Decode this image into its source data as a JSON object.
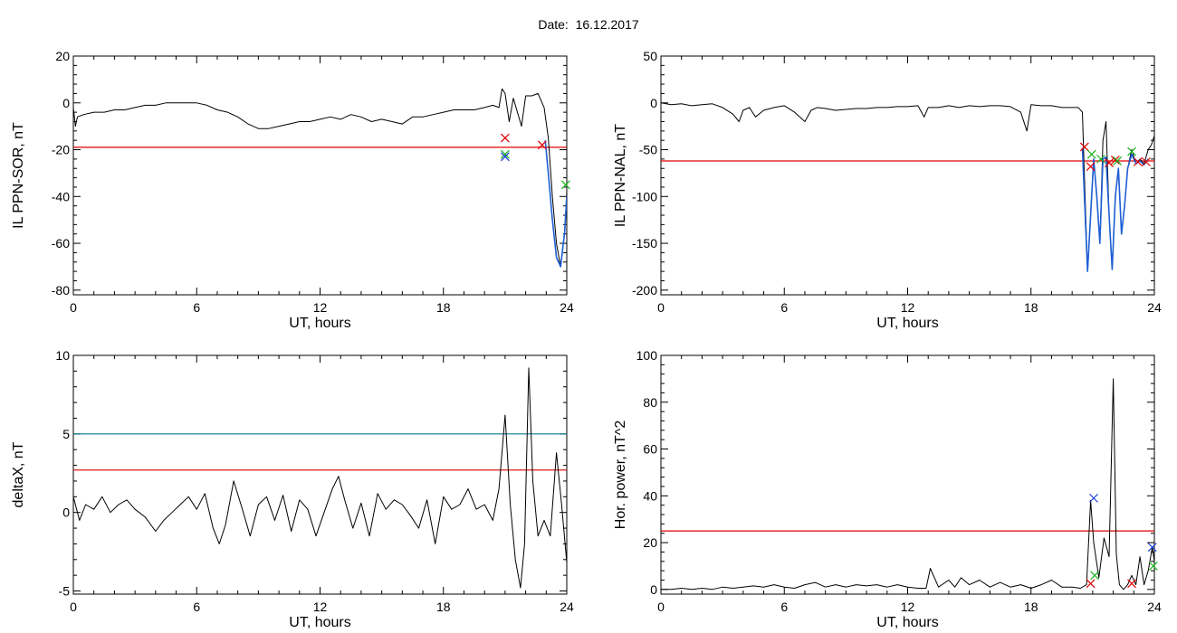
{
  "page": {
    "title_label": "Date:",
    "title_value": "16.12.2017"
  },
  "colors": {
    "trace": "#000000",
    "threshold": "#e00000",
    "upper_threshold": "#0a7a92",
    "fit": "#1f5fd6",
    "mark_red": "#e00000",
    "mark_green": "#16b01a",
    "mark_blue": "#1a3fd8"
  },
  "chart_data": [
    {
      "id": "ppn-sor",
      "type": "line",
      "xlabel": "UT, hours",
      "ylabel": "IL PPN-SOR, nT",
      "xlim": [
        0,
        24
      ],
      "ylim": [
        -82,
        20
      ],
      "xticks": [
        0,
        6,
        12,
        18,
        24
      ],
      "yticks": [
        20,
        0,
        -20,
        -40,
        -60,
        -80
      ],
      "series": [
        {
          "role": "trace",
          "x": [
            0,
            0.1,
            0.2,
            0.5,
            1,
            1.5,
            2,
            2.5,
            3,
            3.5,
            4,
            4.5,
            5,
            5.5,
            6,
            6.5,
            7,
            7.5,
            8,
            8.5,
            9,
            9.5,
            10,
            10.5,
            11,
            11.5,
            12,
            12.5,
            13,
            13.5,
            14,
            14.5,
            15,
            15.5,
            16,
            16.5,
            17,
            17.5,
            18,
            18.5,
            19,
            19.5,
            20,
            20.4,
            20.7,
            20.85,
            21,
            21.2,
            21.4,
            21.6,
            21.8,
            22,
            22.3,
            22.6,
            22.9,
            23.1,
            23.3,
            23.5,
            23.7,
            23.9,
            24
          ],
          "y": [
            -2,
            -10,
            -6,
            -5,
            -4,
            -4,
            -3,
            -3,
            -2,
            -1,
            -1,
            0,
            0,
            0,
            0,
            -1,
            -3,
            -4,
            -6,
            -9,
            -11,
            -11,
            -10,
            -9,
            -8,
            -8,
            -7,
            -6,
            -7,
            -5,
            -6,
            -8,
            -7,
            -8,
            -9,
            -6,
            -6,
            -5,
            -4,
            -3,
            -3,
            -3,
            -2,
            -1,
            -2,
            6,
            4,
            -8,
            2,
            -4,
            -10,
            3,
            3,
            4,
            -2,
            -15,
            -40,
            -60,
            -70,
            -55,
            -38
          ]
        },
        {
          "role": "fit",
          "x": [
            22.95,
            23.1,
            23.3,
            23.5,
            23.7,
            23.9,
            24
          ],
          "y": [
            -16,
            -30,
            -50,
            -66,
            -70,
            -55,
            -40
          ]
        },
        {
          "role": "threshold",
          "x": [
            0,
            24
          ],
          "y": [
            -19,
            -19
          ]
        }
      ],
      "markers": [
        {
          "x": 21.0,
          "y": -15,
          "color": "red"
        },
        {
          "x": 21.0,
          "y": -22,
          "color": "green"
        },
        {
          "x": 21.0,
          "y": -23,
          "color": "blue"
        },
        {
          "x": 22.8,
          "y": -18,
          "color": "red"
        },
        {
          "x": 23.95,
          "y": -35,
          "color": "green"
        }
      ]
    },
    {
      "id": "ppn-nal",
      "type": "line",
      "xlabel": "UT, hours",
      "ylabel": "IL PPN-NAL, nT",
      "xlim": [
        0,
        24
      ],
      "ylim": [
        -205,
        50
      ],
      "xticks": [
        0,
        6,
        12,
        18,
        24
      ],
      "yticks": [
        50,
        0,
        -50,
        -100,
        -150,
        -200
      ],
      "series": [
        {
          "role": "trace",
          "x": [
            0,
            0.5,
            1,
            1.5,
            2,
            2.5,
            3,
            3.5,
            3.8,
            4,
            4.3,
            4.6,
            5,
            5.5,
            6,
            6.5,
            7,
            7.3,
            7.6,
            8,
            8.5,
            9,
            9.5,
            10,
            10.5,
            11,
            11.5,
            12,
            12.5,
            12.8,
            13,
            13.5,
            14,
            14.5,
            15,
            15.5,
            16,
            16.5,
            17,
            17.5,
            17.8,
            18,
            18.5,
            19,
            19.5,
            20,
            20.3,
            20.5,
            20.6,
            20.75,
            20.9,
            21.05,
            21.2,
            21.35,
            21.5,
            21.65,
            21.8,
            21.95,
            22.1,
            22.25,
            22.4,
            22.55,
            22.7,
            22.9,
            23.1,
            23.3,
            23.5,
            23.7,
            23.85,
            24
          ],
          "y": [
            0,
            -2,
            -1,
            -3,
            -2,
            -1,
            -5,
            -12,
            -20,
            -8,
            -5,
            -15,
            -8,
            -5,
            -3,
            -10,
            -20,
            -8,
            -5,
            -6,
            -8,
            -7,
            -6,
            -6,
            -5,
            -5,
            -4,
            -4,
            -3,
            -15,
            -5,
            -5,
            -3,
            -5,
            -3,
            -4,
            -3,
            -3,
            -4,
            -10,
            -30,
            -2,
            -3,
            -3,
            -5,
            -5,
            -5,
            -10,
            -80,
            -180,
            -120,
            -60,
            -100,
            -150,
            -40,
            -20,
            -120,
            -178,
            -100,
            -70,
            -140,
            -110,
            -70,
            -50,
            -65,
            -60,
            -65,
            -50,
            -45,
            -35
          ]
        },
        {
          "role": "fit",
          "x": [
            20.5,
            20.75,
            20.9,
            21.05,
            21.2,
            21.35,
            21.5,
            21.65,
            21.8,
            21.95,
            22.1,
            22.25,
            22.4,
            22.55,
            22.7,
            22.9,
            23.1,
            23.3,
            23.5,
            23.7
          ],
          "y": [
            -48,
            -180,
            -120,
            -60,
            -100,
            -150,
            -60,
            -58,
            -120,
            -178,
            -100,
            -70,
            -140,
            -110,
            -70,
            -55,
            -65,
            -62,
            -66,
            -60
          ]
        },
        {
          "role": "threshold",
          "x": [
            0,
            24
          ],
          "y": [
            -62,
            -62
          ]
        }
      ],
      "markers": [
        {
          "x": 20.6,
          "y": -47,
          "color": "red"
        },
        {
          "x": 20.9,
          "y": -68,
          "color": "red"
        },
        {
          "x": 20.95,
          "y": -55,
          "color": "green"
        },
        {
          "x": 21.4,
          "y": -60,
          "color": "green"
        },
        {
          "x": 21.8,
          "y": -64,
          "color": "red"
        },
        {
          "x": 22.1,
          "y": -61,
          "color": "red"
        },
        {
          "x": 22.2,
          "y": -62,
          "color": "green"
        },
        {
          "x": 22.9,
          "y": -52,
          "color": "green"
        },
        {
          "x": 23.2,
          "y": -63,
          "color": "red"
        },
        {
          "x": 23.6,
          "y": -63,
          "color": "red"
        }
      ]
    },
    {
      "id": "deltax",
      "type": "line",
      "xlabel": "UT, hours",
      "ylabel": "deltaX, nT",
      "xlim": [
        0,
        24
      ],
      "ylim": [
        -5.2,
        10
      ],
      "xticks": [
        0,
        6,
        12,
        18,
        24
      ],
      "yticks": [
        10,
        5,
        0,
        -5
      ],
      "series": [
        {
          "role": "trace",
          "x": [
            0,
            0.3,
            0.6,
            1,
            1.4,
            1.8,
            2.2,
            2.6,
            3,
            3.5,
            4,
            4.4,
            4.8,
            5.2,
            5.6,
            6,
            6.4,
            6.8,
            7.1,
            7.4,
            7.8,
            8.2,
            8.6,
            9,
            9.4,
            9.8,
            10.2,
            10.6,
            11,
            11.4,
            11.8,
            12.2,
            12.6,
            12.9,
            13.2,
            13.6,
            14,
            14.4,
            14.8,
            15.2,
            15.6,
            16,
            16.4,
            16.8,
            17.2,
            17.6,
            18,
            18.4,
            18.8,
            19.2,
            19.6,
            20,
            20.4,
            20.7,
            21,
            21.25,
            21.5,
            21.75,
            21.95,
            22.15,
            22.35,
            22.6,
            22.9,
            23.2,
            23.5,
            23.75,
            24
          ],
          "y": [
            1,
            -0.5,
            0.5,
            0.2,
            1,
            0,
            0.5,
            0.8,
            0.2,
            -0.3,
            -1.2,
            -0.5,
            0,
            0.5,
            1,
            0.2,
            1.2,
            -1,
            -2,
            -0.8,
            2,
            0.3,
            -1.5,
            0.5,
            1,
            -0.5,
            1.1,
            -1.2,
            0.8,
            0.2,
            -1.5,
            0,
            1.5,
            2.3,
            0.8,
            -1,
            0.6,
            -1.5,
            1.2,
            0.2,
            0.8,
            0.5,
            -0.2,
            -1,
            0.8,
            -2,
            1,
            0.2,
            0.5,
            1.5,
            0.2,
            0.5,
            -0.5,
            1.5,
            6.2,
            0.5,
            -3,
            -4.8,
            -2,
            9.2,
            2,
            -1.5,
            -0.5,
            -1.5,
            3.8,
            0.5,
            -3.2
          ]
        },
        {
          "role": "upper_threshold",
          "x": [
            0,
            24
          ],
          "y": [
            5,
            5
          ]
        },
        {
          "role": "threshold",
          "x": [
            0,
            24
          ],
          "y": [
            2.7,
            2.7
          ]
        }
      ],
      "markers": []
    },
    {
      "id": "hor-power",
      "type": "line",
      "xlabel": "UT, hours",
      "ylabel": "Hor. power, nT^2",
      "xlim": [
        0,
        24
      ],
      "ylim": [
        -2,
        100
      ],
      "xticks": [
        0,
        6,
        12,
        18,
        24
      ],
      "yticks": [
        100,
        80,
        60,
        40,
        20,
        0
      ],
      "series": [
        {
          "role": "trace",
          "x": [
            0,
            0.5,
            1,
            1.5,
            2,
            2.5,
            3,
            3.5,
            4,
            4.5,
            5,
            5.5,
            6,
            6.5,
            7,
            7.5,
            8,
            8.5,
            9,
            9.5,
            10,
            10.5,
            11,
            11.5,
            12,
            12.5,
            12.9,
            13.1,
            13.5,
            14,
            14.3,
            14.6,
            15,
            15.5,
            16,
            16.5,
            17,
            17.5,
            18,
            18.5,
            19,
            19.5,
            20,
            20.4,
            20.7,
            20.9,
            21.05,
            21.3,
            21.55,
            21.8,
            22,
            22.15,
            22.3,
            22.5,
            22.7,
            22.9,
            23.1,
            23.3,
            23.5,
            23.7,
            23.9,
            24
          ],
          "y": [
            0,
            0,
            0.5,
            0,
            0.5,
            0,
            1,
            0.5,
            1,
            1.5,
            1,
            2,
            1,
            0.5,
            2,
            3,
            1,
            2,
            1,
            2,
            1.5,
            2,
            1,
            2,
            1,
            0.5,
            0.5,
            9,
            1,
            4,
            1,
            5,
            2,
            4,
            1,
            3,
            1,
            2,
            0.5,
            2,
            4,
            1,
            1,
            0.5,
            2,
            38,
            20,
            5,
            22,
            14,
            90,
            15,
            2,
            0,
            2,
            6,
            2,
            14,
            2,
            8,
            18,
            12
          ]
        },
        {
          "role": "threshold",
          "x": [
            0,
            24
          ],
          "y": [
            25,
            25
          ]
        }
      ],
      "markers": [
        {
          "x": 20.9,
          "y": 2.5,
          "color": "red"
        },
        {
          "x": 21.1,
          "y": 6,
          "color": "green"
        },
        {
          "x": 21.05,
          "y": 39,
          "color": "blue"
        },
        {
          "x": 22.9,
          "y": 2.5,
          "color": "red"
        },
        {
          "x": 23.9,
          "y": 18,
          "color": "blue"
        },
        {
          "x": 23.95,
          "y": 10,
          "color": "green"
        }
      ]
    }
  ]
}
